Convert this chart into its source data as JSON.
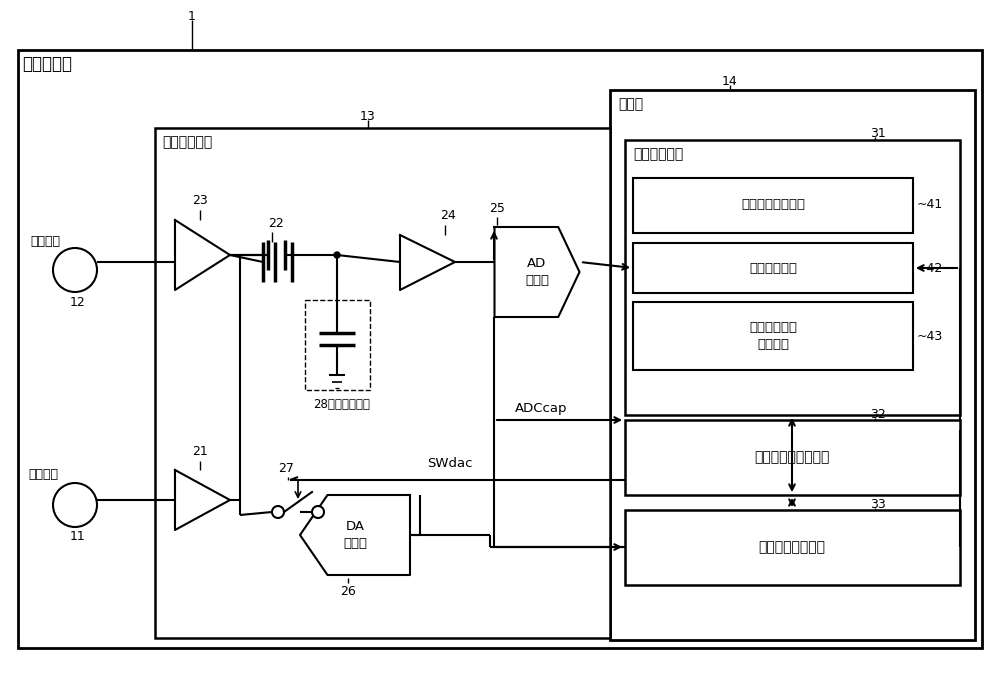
{
  "bg": "#ffffff",
  "lc": "#000000",
  "labels": {
    "biosensor": "生物传感器",
    "signal_unit": "信号接收单元",
    "controller": "控制器",
    "voltage_meas": "电位测量单元",
    "recv_sig_acq": "接收信号获取单元",
    "threshold_hold": "阈值保持单元",
    "recv_sig_thresh": "接收信号阈值\n判定单元",
    "offset_calc": "偏移设定値计算单元",
    "ctrl_timing": "控制定时确定单元",
    "ad_converter": "AD\n转换器",
    "da_converter": "DA\n转换器",
    "first_channel": "第一通道",
    "ref_voltage": "参考电位",
    "swdac": "SWdac",
    "adccap": "ADCcap",
    "ch1_label": "28（第一通道）"
  },
  "nums": {
    "1": "1",
    "11": "11",
    "12": "12",
    "13": "13",
    "14": "14",
    "21": "21",
    "22": "22",
    "23": "23",
    "24": "24",
    "25": "25",
    "26": "26",
    "27": "27",
    "28": "28",
    "31": "31",
    "32": "32",
    "33": "33",
    "41": "~41",
    "42": "~42",
    "43": "~43"
  }
}
